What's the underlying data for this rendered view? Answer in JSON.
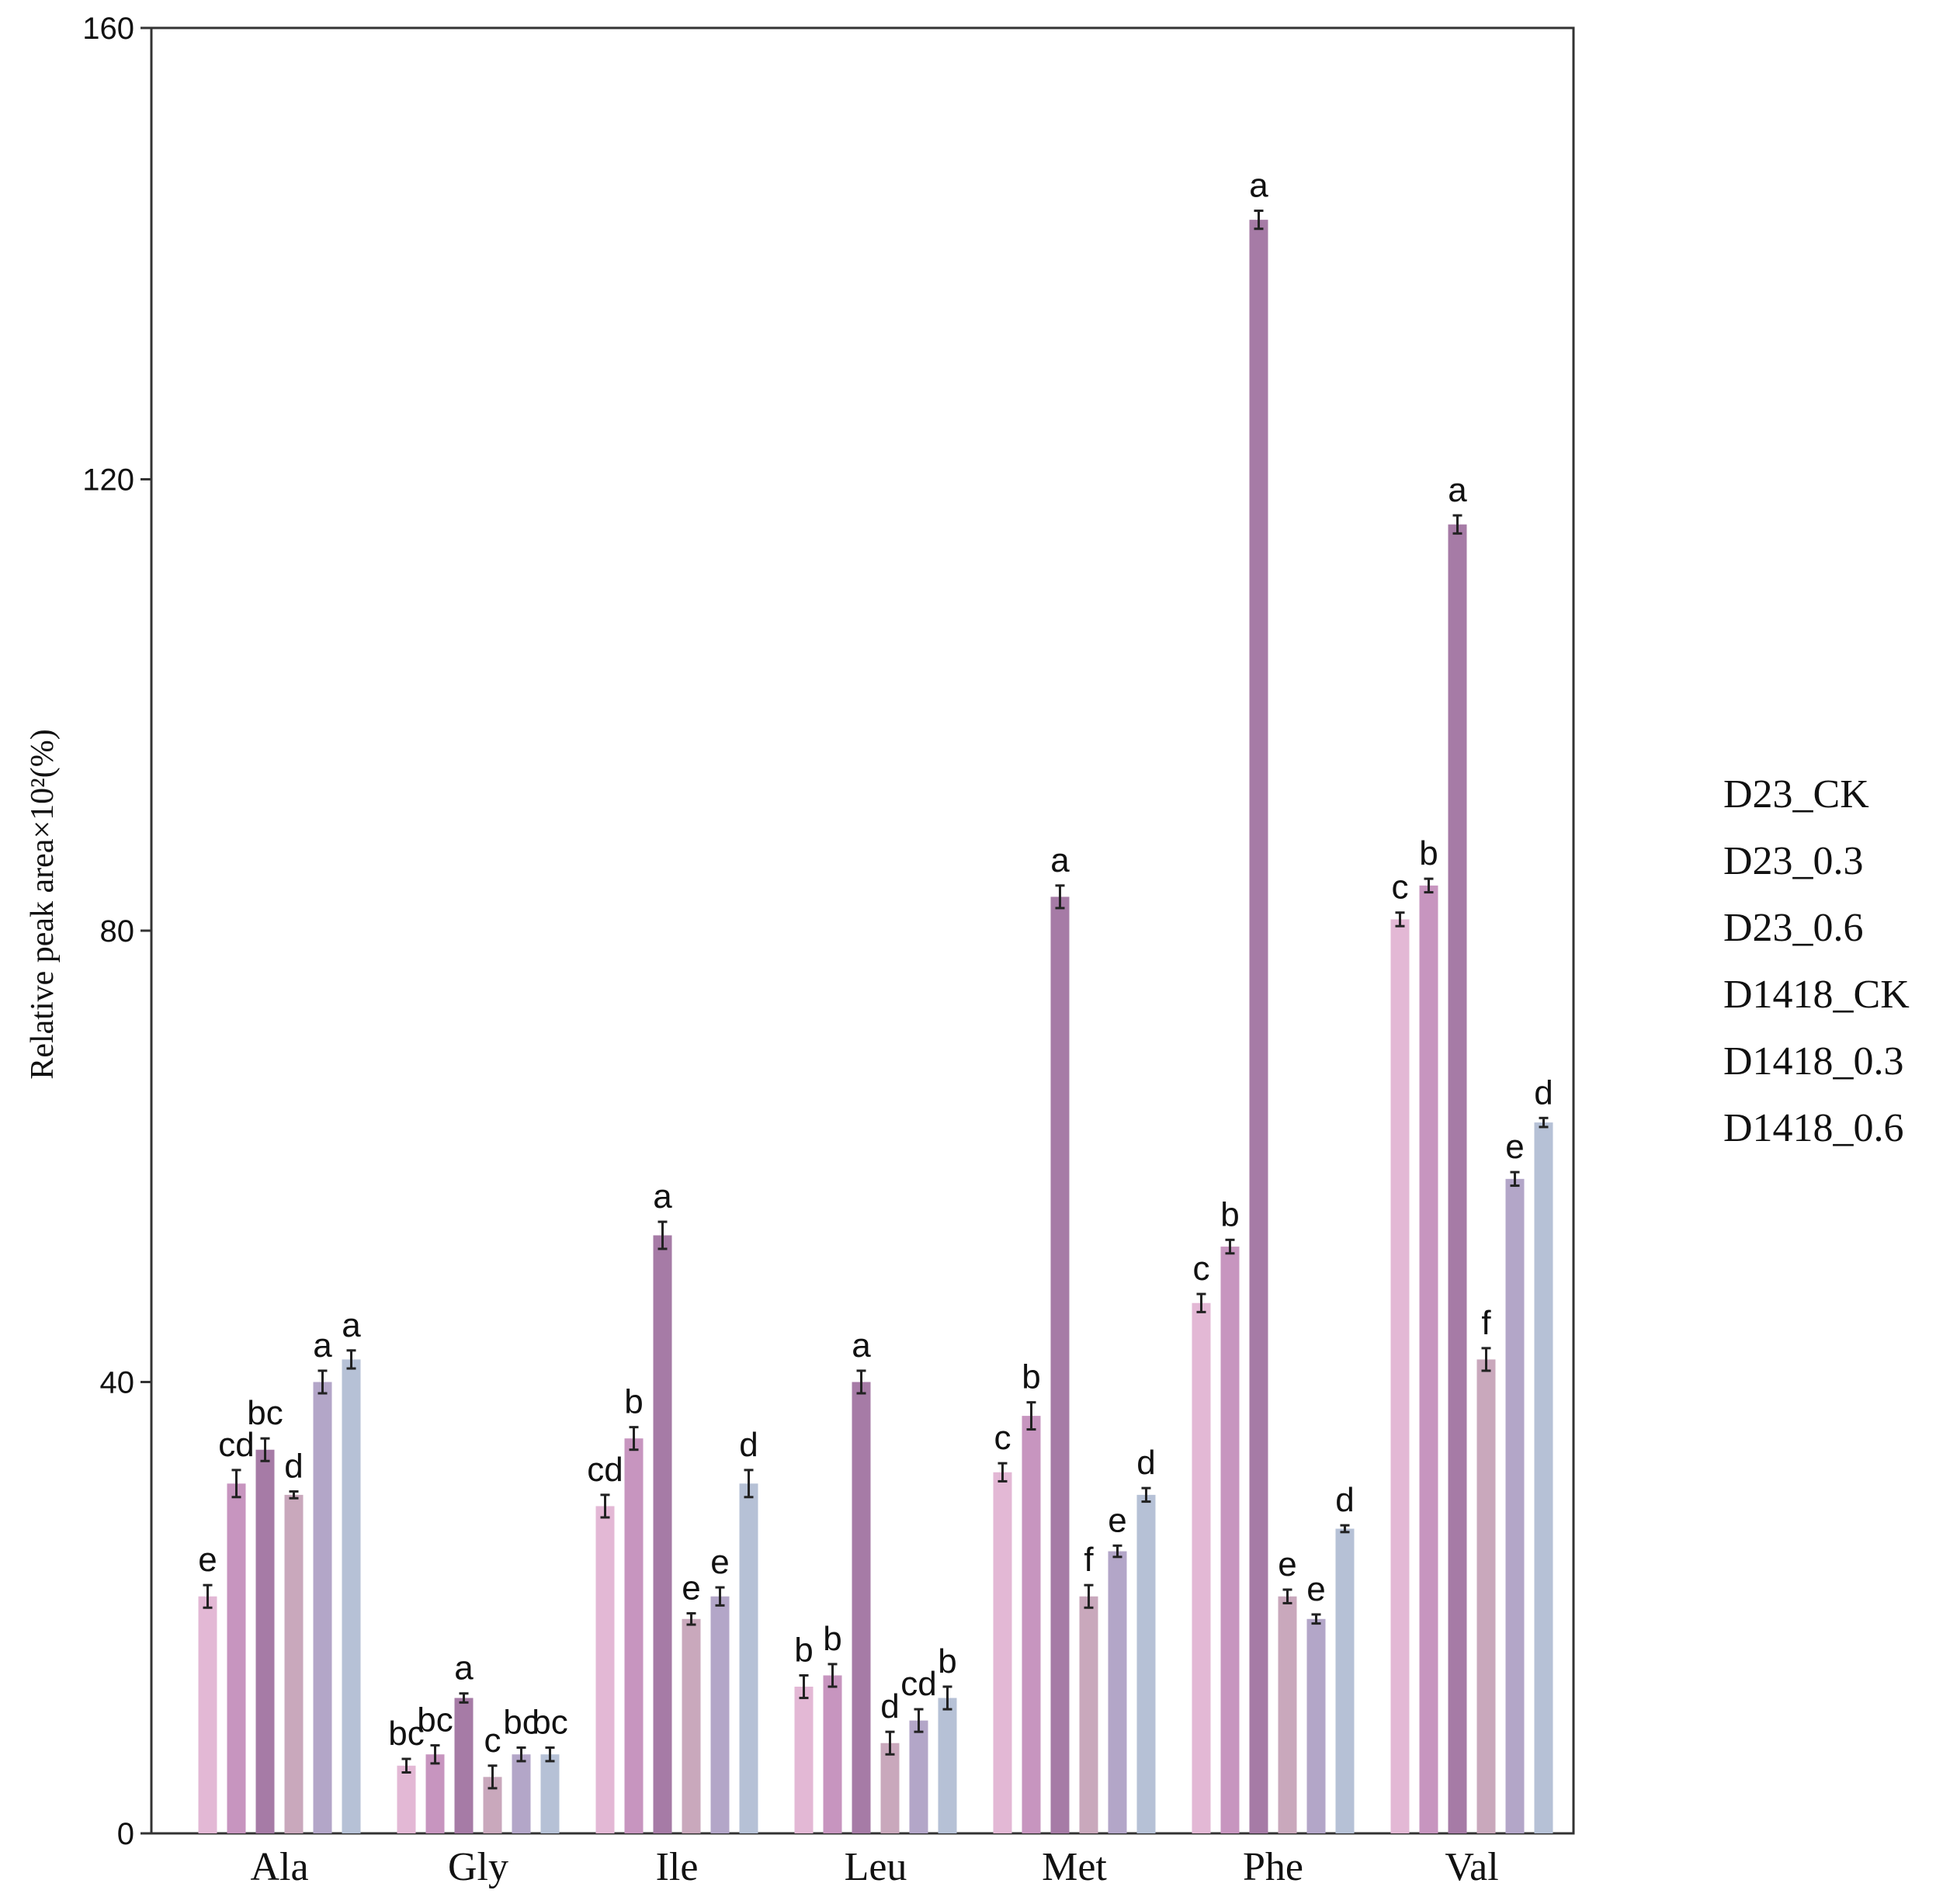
{
  "chart_data": {
    "type": "bar",
    "title": "",
    "xlabel": "",
    "ylabel": "Relative peak area×10²(%)",
    "ylim": [
      0,
      160
    ],
    "yticks": [
      0,
      40,
      80,
      120,
      160
    ],
    "grid": false,
    "legend_position": "right",
    "categories": [
      "Ala",
      "Gly",
      "Ile",
      "Leu",
      "Met",
      "Phe",
      "Val"
    ],
    "series": [
      {
        "name": "D23_CK",
        "color": "#e3b8d5",
        "values": [
          21,
          6,
          29,
          13,
          32,
          47,
          81
        ],
        "errors": [
          1.0,
          0.6,
          1.0,
          1.0,
          0.8,
          0.8,
          0.6
        ],
        "labels": [
          "e",
          "bc",
          "cd",
          "b",
          "c",
          "c",
          "c"
        ]
      },
      {
        "name": "D23_0.3",
        "color": "#c795bf",
        "values": [
          31,
          7,
          35,
          14,
          37,
          52,
          84
        ],
        "errors": [
          1.2,
          0.8,
          1.0,
          1.0,
          1.2,
          0.6,
          0.6
        ],
        "labels": [
          "cd",
          "bc",
          "b",
          "b",
          "b",
          "b",
          "b"
        ]
      },
      {
        "name": "D23_0.6",
        "color": "#a67ba6",
        "values": [
          34,
          12,
          53,
          40,
          83,
          143,
          116
        ],
        "errors": [
          1.0,
          0.4,
          1.2,
          1.0,
          1.0,
          0.8,
          0.8
        ],
        "labels": [
          "bc",
          "a",
          "a",
          "a",
          "a",
          "a",
          "a"
        ]
      },
      {
        "name": "D1418_CK",
        "color": "#c9a8bc",
        "values": [
          30,
          5,
          19,
          8,
          21,
          21,
          42
        ],
        "errors": [
          0.3,
          1.0,
          0.5,
          1.0,
          1.0,
          0.6,
          1.0
        ],
        "labels": [
          "d",
          "c",
          "e",
          "d",
          "f",
          "e",
          "f"
        ]
      },
      {
        "name": "D1418_0.3",
        "color": "#b3a6c8",
        "values": [
          40,
          7,
          21,
          10,
          25,
          19,
          58
        ],
        "errors": [
          1.0,
          0.6,
          0.8,
          1.0,
          0.5,
          0.4,
          0.6
        ],
        "labels": [
          "a",
          "bc",
          "e",
          "cd",
          "e",
          "e",
          "e"
        ]
      },
      {
        "name": "D1418_0.6",
        "color": "#b6c1d6",
        "values": [
          42,
          7,
          31,
          12,
          30,
          27,
          63
        ],
        "errors": [
          0.8,
          0.6,
          1.2,
          1.0,
          0.6,
          0.3,
          0.4
        ],
        "labels": [
          "a",
          "bc",
          "d",
          "b",
          "d",
          "d",
          "d"
        ]
      }
    ]
  }
}
